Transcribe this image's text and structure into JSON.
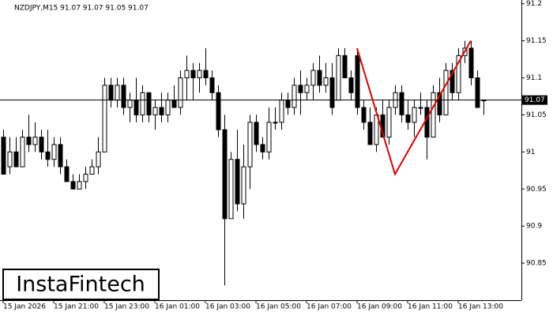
{
  "chart_data": {
    "type": "candlestick",
    "header": "NZDJPY,M15  91.07 91.07 91.05 91.07",
    "watermark": "InstaFintech",
    "categories": [
      "15 Jan 2026",
      null,
      null,
      null,
      null,
      null,
      null,
      null,
      "15 Jan 21:00",
      null,
      null,
      null,
      null,
      null,
      null,
      null,
      "15 Jan 23:00",
      null,
      null,
      null,
      null,
      null,
      null,
      null,
      "16 Jan 01:00",
      null,
      null,
      null,
      null,
      null,
      null,
      null,
      "16 Jan 03:00",
      null,
      null,
      null,
      null,
      null,
      null,
      null,
      "16 Jan 05:00",
      null,
      null,
      null,
      null,
      null,
      null,
      null,
      "16 Jan 07:00",
      null,
      null,
      null,
      null,
      null,
      null,
      null,
      "16 Jan 09:00",
      null,
      null,
      null,
      null,
      null,
      null,
      null,
      "16 Jan 11:00",
      null,
      null,
      null,
      null,
      null,
      null,
      null,
      "16 Jan 13:00",
      null,
      null,
      null,
      null
    ],
    "open": [
      91.02,
      90.98,
      91.0,
      90.98,
      91.02,
      91.01,
      91.02,
      91.0,
      90.99,
      91.01,
      90.98,
      90.96,
      90.95,
      90.96,
      90.97,
      90.98,
      91.0,
      91.09,
      91.07,
      91.09,
      91.06,
      91.07,
      91.05,
      91.08,
      91.05,
      91.06,
      91.05,
      91.07,
      91.06,
      91.1,
      91.11,
      91.1,
      91.11,
      91.1,
      91.08,
      91.03,
      90.91,
      90.99,
      90.93,
      90.98,
      91.04,
      91.01,
      91.0,
      91.04,
      91.04,
      91.07,
      91.06,
      91.09,
      91.08,
      91.09,
      91.11,
      91.09,
      91.1,
      91.07,
      91.13,
      91.1,
      91.13,
      91.06,
      91.04,
      91.01,
      91.05,
      91.02,
      91.06,
      91.08,
      91.05,
      91.04,
      91.06,
      91.06,
      91.02,
      91.08,
      91.05,
      91.11,
      91.08,
      91.13,
      91.14,
      91.1,
      91.07
    ],
    "high": [
      91.03,
      91.02,
      91.02,
      91.03,
      91.05,
      91.04,
      91.03,
      91.03,
      91.02,
      91.02,
      90.99,
      90.97,
      90.97,
      90.98,
      90.99,
      91.02,
      91.1,
      91.1,
      91.1,
      91.1,
      91.08,
      91.1,
      91.09,
      91.08,
      91.07,
      91.08,
      91.08,
      91.09,
      91.11,
      91.13,
      91.12,
      91.12,
      91.14,
      91.11,
      91.09,
      91.05,
      91.0,
      91.03,
      91.01,
      91.05,
      91.05,
      91.02,
      91.06,
      91.06,
      91.08,
      91.08,
      91.1,
      91.11,
      91.1,
      91.12,
      91.13,
      91.12,
      91.12,
      91.14,
      91.14,
      91.11,
      91.14,
      91.07,
      91.06,
      91.06,
      91.07,
      91.07,
      91.09,
      91.09,
      91.07,
      91.07,
      91.08,
      91.07,
      91.09,
      91.1,
      91.12,
      91.12,
      91.14,
      91.15,
      91.15,
      91.11,
      91.07
    ],
    "low": [
      90.97,
      90.97,
      90.98,
      90.98,
      91.0,
      91.0,
      90.99,
      90.98,
      90.98,
      90.97,
      90.96,
      90.95,
      90.95,
      90.95,
      90.97,
      90.97,
      91.0,
      91.06,
      91.06,
      91.05,
      91.04,
      91.04,
      91.04,
      91.04,
      91.03,
      91.04,
      91.04,
      91.06,
      91.05,
      91.07,
      91.07,
      91.08,
      91.09,
      91.07,
      91.02,
      90.82,
      90.91,
      90.92,
      90.91,
      90.95,
      91.0,
      90.99,
      90.99,
      91.03,
      91.03,
      91.05,
      91.05,
      91.05,
      91.07,
      91.07,
      91.08,
      91.08,
      91.05,
      91.07,
      91.1,
      91.07,
      91.05,
      91.03,
      91.01,
      91.0,
      91.02,
      91.01,
      91.05,
      91.04,
      91.03,
      91.02,
      91.05,
      90.99,
      91.02,
      91.04,
      91.05,
      91.07,
      91.07,
      91.12,
      91.09,
      91.06,
      91.05
    ],
    "close": [
      90.97,
      91.0,
      90.98,
      91.02,
      91.01,
      91.02,
      91.0,
      90.99,
      91.01,
      90.98,
      90.96,
      90.95,
      90.96,
      90.97,
      90.98,
      91.0,
      91.09,
      91.07,
      91.09,
      91.06,
      91.07,
      91.05,
      91.08,
      91.05,
      91.06,
      91.05,
      91.07,
      91.06,
      91.1,
      91.11,
      91.1,
      91.11,
      91.1,
      91.08,
      91.03,
      90.91,
      90.99,
      90.93,
      90.98,
      91.04,
      91.01,
      91.0,
      91.04,
      91.04,
      91.07,
      91.06,
      91.09,
      91.08,
      91.09,
      91.11,
      91.09,
      91.1,
      91.06,
      91.13,
      91.1,
      91.08,
      91.06,
      91.04,
      91.01,
      91.05,
      91.02,
      91.06,
      91.08,
      91.05,
      91.04,
      91.06,
      91.06,
      91.02,
      91.08,
      91.05,
      91.11,
      91.08,
      91.13,
      91.14,
      91.1,
      91.06,
      91.07
    ],
    "up_color": "#ffffff",
    "down_color": "#000000",
    "edge_color": "#000000",
    "ylim": [
      90.8,
      91.205
    ],
    "yticks": [
      90.85,
      90.9,
      90.95,
      91.0,
      91.05,
      91.1,
      91.15,
      91.2
    ],
    "current_price": 91.07,
    "pattern": {
      "color": "#e00000",
      "x": [
        56,
        62,
        74
      ],
      "y": [
        91.14,
        90.97,
        91.15
      ]
    }
  }
}
